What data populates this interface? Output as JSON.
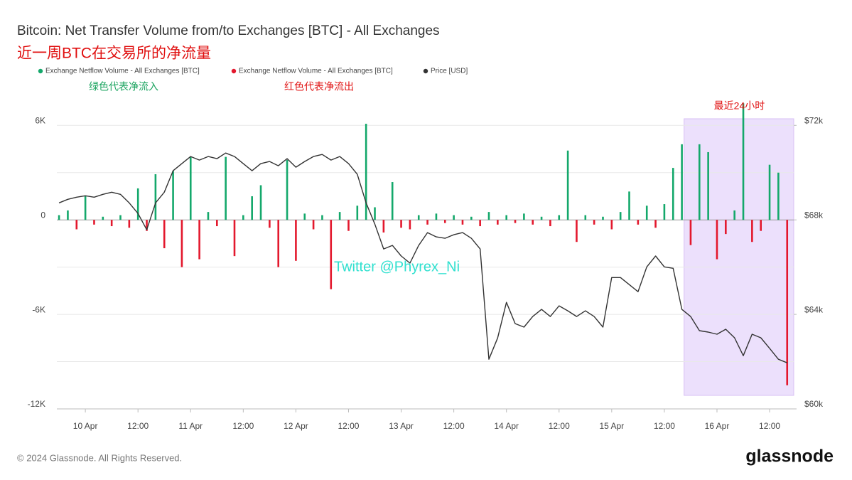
{
  "chart_data": {
    "type": "bar-line",
    "title": "Bitcoin: Net Transfer Volume from/to Exchanges [BTC] - All Exchanges",
    "subtitle": "近一周BTC在交易所的净流量",
    "annotations": {
      "inflow_note": "绿色代表净流入",
      "outflow_note": "红色代表净流出",
      "watermark": "Twitter @Phyrex_Ni"
    },
    "highlight": {
      "label": "最近24小时",
      "x": [
        "15 Apr 16:30",
        "16 Apr 17:30"
      ],
      "color": "#e6d5fb"
    },
    "footer": "© 2024 Glassnode. All Rights Reserved.",
    "brand": "glassnode",
    "x": [
      "9 Apr 18:00",
      "9 Apr 20:00",
      "9 Apr 22:00",
      "10 Apr 00:00",
      "10 Apr 02:00",
      "10 Apr 04:00",
      "10 Apr 06:00",
      "10 Apr 08:00",
      "10 Apr 10:00",
      "10 Apr 12:00",
      "10 Apr 14:00",
      "10 Apr 16:00",
      "10 Apr 18:00",
      "10 Apr 20:00",
      "10 Apr 22:00",
      "11 Apr 00:00",
      "11 Apr 02:00",
      "11 Apr 04:00",
      "11 Apr 06:00",
      "11 Apr 08:00",
      "11 Apr 10:00",
      "11 Apr 12:00",
      "11 Apr 14:00",
      "11 Apr 16:00",
      "11 Apr 18:00",
      "11 Apr 20:00",
      "11 Apr 22:00",
      "12 Apr 00:00",
      "12 Apr 02:00",
      "12 Apr 04:00",
      "12 Apr 06:00",
      "12 Apr 08:00",
      "12 Apr 10:00",
      "12 Apr 12:00",
      "12 Apr 14:00",
      "12 Apr 16:00",
      "12 Apr 18:00",
      "12 Apr 20:00",
      "12 Apr 22:00",
      "13 Apr 00:00",
      "13 Apr 02:00",
      "13 Apr 04:00",
      "13 Apr 06:00",
      "13 Apr 08:00",
      "13 Apr 10:00",
      "13 Apr 12:00",
      "13 Apr 14:00",
      "13 Apr 16:00",
      "13 Apr 18:00",
      "13 Apr 20:00",
      "13 Apr 22:00",
      "14 Apr 00:00",
      "14 Apr 02:00",
      "14 Apr 04:00",
      "14 Apr 06:00",
      "14 Apr 08:00",
      "14 Apr 10:00",
      "14 Apr 12:00",
      "14 Apr 14:00",
      "14 Apr 16:00",
      "14 Apr 18:00",
      "14 Apr 20:00",
      "14 Apr 22:00",
      "15 Apr 00:00",
      "15 Apr 02:00",
      "15 Apr 04:00",
      "15 Apr 06:00",
      "15 Apr 08:00",
      "15 Apr 10:00",
      "15 Apr 12:00",
      "15 Apr 14:00",
      "15 Apr 16:00",
      "15 Apr 18:00",
      "15 Apr 20:00",
      "15 Apr 22:00",
      "16 Apr 00:00",
      "16 Apr 02:00",
      "16 Apr 04:00",
      "16 Apr 06:00",
      "16 Apr 08:00",
      "16 Apr 10:00",
      "16 Apr 12:00",
      "16 Apr 14:00",
      "16 Apr 16:00"
    ],
    "series": [
      {
        "name": "Exchange Netflow Volume - All Exchanges [BTC]",
        "color": "#14a86b",
        "values": [
          300,
          600,
          null,
          1500,
          null,
          200,
          null,
          300,
          null,
          2000,
          null,
          2900,
          null,
          3100,
          null,
          4000,
          null,
          500,
          null,
          4000,
          null,
          300,
          1500,
          2200,
          null,
          null,
          3800,
          null,
          400,
          null,
          300,
          null,
          500,
          null,
          900,
          6100,
          800,
          null,
          2400,
          null,
          null,
          300,
          null,
          400,
          null,
          300,
          null,
          200,
          null,
          500,
          null,
          300,
          null,
          400,
          null,
          200,
          null,
          300,
          4400,
          null,
          300,
          null,
          200,
          null,
          500,
          1800,
          null,
          900,
          null,
          1000,
          3300,
          4800,
          null,
          4800,
          4300,
          null,
          null,
          600,
          7400,
          null,
          null,
          3500,
          3000,
          null
        ]
      },
      {
        "name": "Exchange Netflow Volume - All Exchanges [BTC]",
        "color": "#e3182d",
        "values": [
          null,
          null,
          -600,
          null,
          -300,
          null,
          -400,
          null,
          -500,
          null,
          -700,
          null,
          -1800,
          null,
          -3000,
          null,
          -2500,
          null,
          -400,
          null,
          -2300,
          null,
          null,
          null,
          -500,
          -3000,
          null,
          -2600,
          null,
          -600,
          null,
          -4400,
          null,
          -700,
          null,
          null,
          null,
          -800,
          null,
          -500,
          -600,
          null,
          -300,
          null,
          -200,
          null,
          -300,
          null,
          -400,
          null,
          -300,
          null,
          -200,
          null,
          -300,
          null,
          -400,
          null,
          null,
          -1400,
          null,
          -300,
          null,
          -600,
          null,
          null,
          -300,
          null,
          -500,
          null,
          null,
          null,
          -1600,
          null,
          null,
          -2500,
          -900,
          null,
          null,
          -1400,
          -700,
          null,
          null,
          -10500
        ]
      },
      {
        "name": "Price [USD]",
        "color": "#333333",
        "axis": "y2",
        "values": [
          68720,
          68870,
          68960,
          69020,
          68960,
          69080,
          69170,
          69080,
          68720,
          68270,
          67580,
          68720,
          69170,
          70080,
          70380,
          70680,
          70530,
          70680,
          70590,
          70830,
          70680,
          70380,
          70080,
          70380,
          70470,
          70290,
          70590,
          70230,
          70470,
          70680,
          70770,
          70530,
          70680,
          70380,
          69930,
          68720,
          67820,
          66770,
          66920,
          66470,
          66170,
          66920,
          67460,
          67280,
          67220,
          67370,
          67460,
          67220,
          66770,
          62100,
          63000,
          64510,
          63610,
          63460,
          63910,
          64210,
          63910,
          64360,
          64150,
          63910,
          64150,
          63910,
          63460,
          65560,
          65560,
          65260,
          64960,
          66010,
          66470,
          66010,
          65950,
          64210,
          63910,
          63310,
          63250,
          63160,
          63370,
          63010,
          62250,
          63160,
          63010,
          62560,
          62100,
          61950
        ]
      }
    ],
    "xlim": [
      "9 Apr 17:30",
      "16 Apr 17:30"
    ],
    "xticks": [
      {
        "value": "10 Apr 00:00",
        "label": "10 Apr"
      },
      {
        "value": "10 Apr 12:00",
        "label": "12:00"
      },
      {
        "value": "11 Apr 00:00",
        "label": "11 Apr"
      },
      {
        "value": "11 Apr 12:00",
        "label": "12:00"
      },
      {
        "value": "12 Apr 00:00",
        "label": "12 Apr"
      },
      {
        "value": "12 Apr 12:00",
        "label": "12:00"
      },
      {
        "value": "13 Apr 00:00",
        "label": "13 Apr"
      },
      {
        "value": "13 Apr 12:00",
        "label": "12:00"
      },
      {
        "value": "14 Apr 00:00",
        "label": "14 Apr"
      },
      {
        "value": "14 Apr 12:00",
        "label": "12:00"
      },
      {
        "value": "15 Apr 00:00",
        "label": "15 Apr"
      },
      {
        "value": "15 Apr 12:00",
        "label": "12:00"
      },
      {
        "value": "16 Apr 00:00",
        "label": "16 Apr"
      },
      {
        "value": "16 Apr 12:00",
        "label": "12:00"
      }
    ],
    "ylim": [
      -12000,
      8000
    ],
    "yticks": [
      {
        "value": 6000,
        "label": "6K"
      },
      0,
      {
        "value": -6000,
        "label": "-6K"
      },
      {
        "value": -12000,
        "label": "-12K"
      }
    ],
    "minor_yticks": [
      3000,
      -3000,
      -9000
    ],
    "y2lim": [
      60000,
      73333
    ],
    "y2ticks": [
      {
        "value": 72000,
        "label": "$72k"
      },
      {
        "value": 68000,
        "label": "$68k"
      },
      {
        "value": 64000,
        "label": "$64k"
      },
      {
        "value": 60000,
        "label": "$60k"
      }
    ],
    "grid": true
  }
}
